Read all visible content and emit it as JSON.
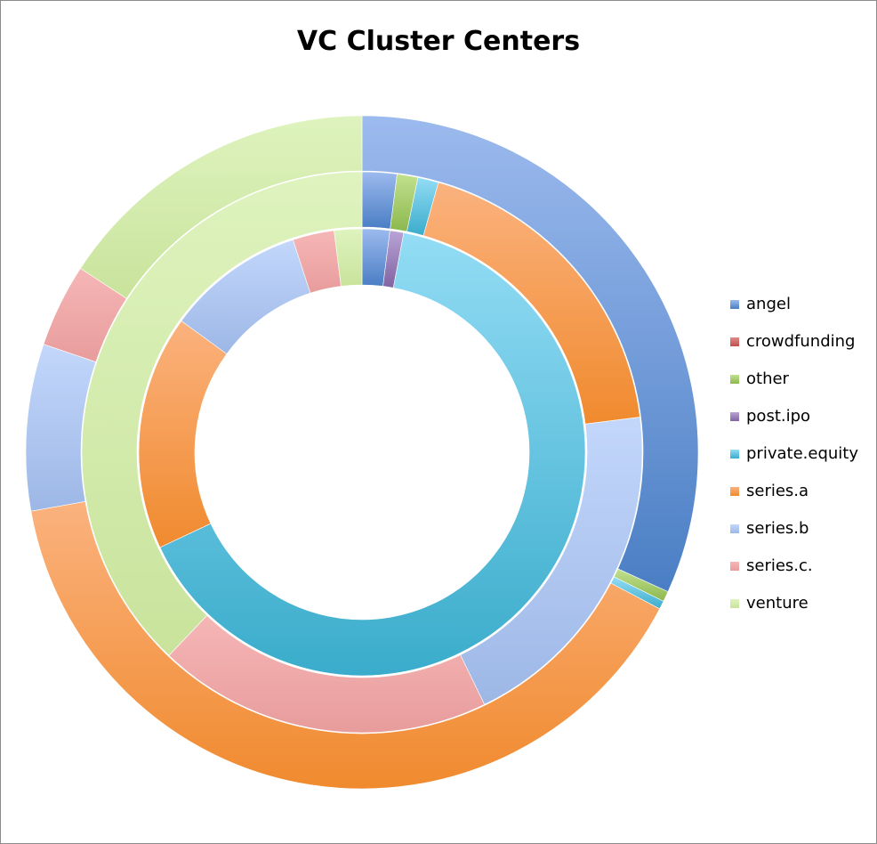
{
  "chart_data": {
    "type": "pie",
    "subtype": "multi-level-doughnut",
    "title": "VC Cluster Centers",
    "legend_position": "right",
    "categories": [
      "angel",
      "crowdfunding",
      "other",
      "post.ipo",
      "private.equity",
      "series.a",
      "series.b",
      "series.c.",
      "venture"
    ],
    "colors": {
      "angel": "#4a7ec4",
      "crowdfunding": "#c0504d",
      "other": "#8cb84e",
      "post.ipo": "#8064a2",
      "private.equity": "#3aaccb",
      "series.a": "#f08a2e",
      "series.b": "#9db7e6",
      "series.c.": "#e89c9c",
      "venture": "#c9e39c"
    },
    "light_colors": {
      "angel": "#9cbaee",
      "crowdfunding": "#e08a88",
      "other": "#c2e08e",
      "post.ipo": "#b9a3d6",
      "private.equity": "#93dcf5",
      "series.a": "#fbb27e",
      "series.b": "#c3d7fb",
      "series.c.": "#f6b6b6",
      "venture": "#def3be"
    },
    "series": [
      {
        "ring": "outer",
        "values": [
          0.318,
          0.0,
          0.005,
          0.0,
          0.004,
          0.395,
          0.08,
          0.04,
          0.158
        ]
      },
      {
        "ring": "middle",
        "values": [
          0.02,
          0.0,
          0.012,
          0.0,
          0.012,
          0.186,
          0.198,
          0.193,
          0.379
        ]
      },
      {
        "ring": "inner",
        "values": [
          0.02,
          0.0,
          0.0,
          0.01,
          0.65,
          0.17,
          0.1,
          0.03,
          0.02
        ]
      }
    ]
  }
}
